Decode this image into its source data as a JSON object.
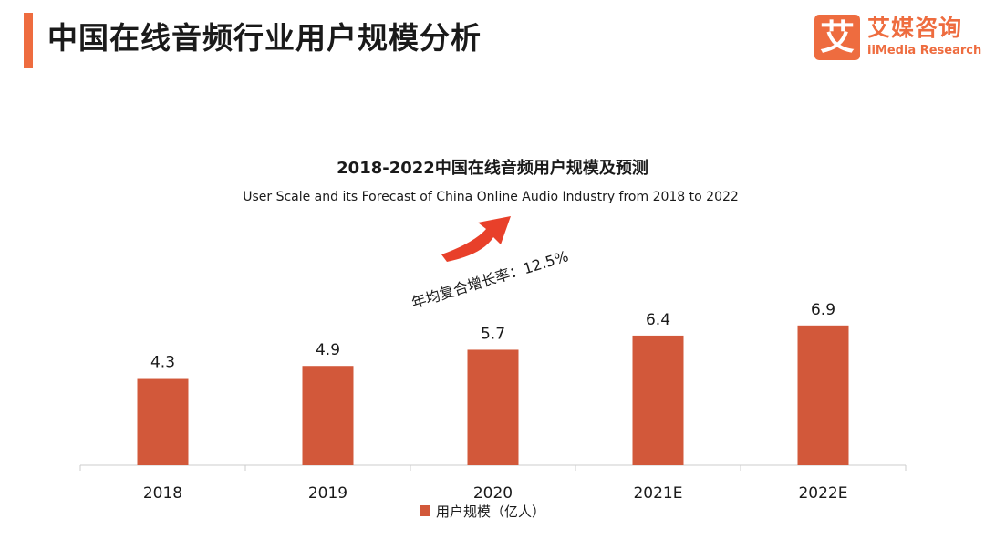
{
  "page": {
    "title": "中国在线音频行业用户规模分析"
  },
  "logo": {
    "mark": "艾",
    "name_cn": "艾媒咨询",
    "name_en": "iiMedia Research"
  },
  "colors": {
    "accent": "#ee6c3f",
    "bar": "#d2583a",
    "axis": "#cccccc",
    "arrow": "#e8402a",
    "text": "#1a1a1a"
  },
  "chart_data": {
    "type": "bar",
    "title": "2018-2022中国在线音频用户规模及预测",
    "subtitle": "User Scale and its Forecast of China Online Audio Industry from 2018 to 2022",
    "categories": [
      "2018",
      "2019",
      "2020",
      "2021E",
      "2022E"
    ],
    "series": [
      {
        "name": "用户规模（亿人）",
        "values": [
          4.3,
          4.9,
          5.7,
          6.4,
          6.9
        ]
      }
    ],
    "ylim": [
      0,
      8
    ],
    "xlabel": "",
    "ylabel": "",
    "grid": false,
    "legend_position": "bottom-center",
    "annotation": "年均复合增长率：12.5%"
  }
}
